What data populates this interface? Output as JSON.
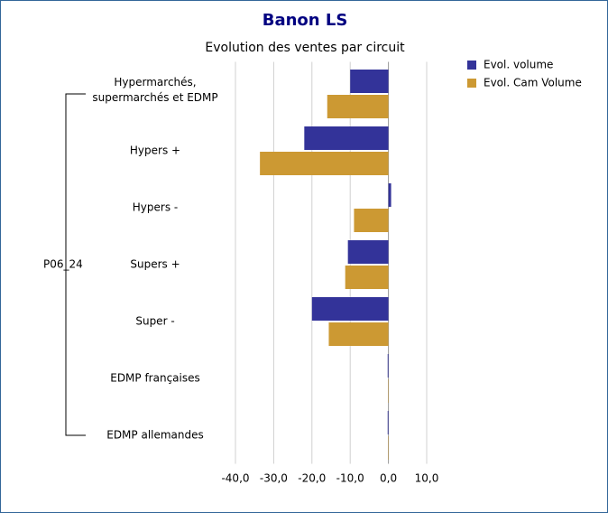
{
  "chart_data": {
    "type": "barh",
    "title": "Banon LS",
    "subtitle": "Evolution des ventes par circuit",
    "group_label": "P06_24",
    "categories": [
      "Hypermarchés,\nsupermarchés et EDMP",
      "Hypers +",
      "Hypers -",
      "Supers +",
      "Super -",
      "EDMP françaises",
      "EDMP allemandes"
    ],
    "series": [
      {
        "name": "Evol. volume",
        "color": "#333399",
        "values": [
          -10,
          -22,
          0.7,
          -10.6,
          -20,
          -0.2,
          -0.2
        ]
      },
      {
        "name": "Evol. Cam Volume",
        "color": "#cc9933",
        "values": [
          -16,
          -33.6,
          -9,
          -11.3,
          -15.6,
          -0.1,
          -0.1
        ]
      }
    ],
    "xlim": [
      -40,
      10
    ],
    "xticks": [
      {
        "value": -40,
        "label": "-40,0"
      },
      {
        "value": -30,
        "label": "-30,0"
      },
      {
        "value": -20,
        "label": "-20,0"
      },
      {
        "value": -10,
        "label": "-10,0"
      },
      {
        "value": 0,
        "label": "0,0"
      },
      {
        "value": 10,
        "label": "10,0"
      }
    ],
    "grid": true,
    "legend": "top-right"
  }
}
